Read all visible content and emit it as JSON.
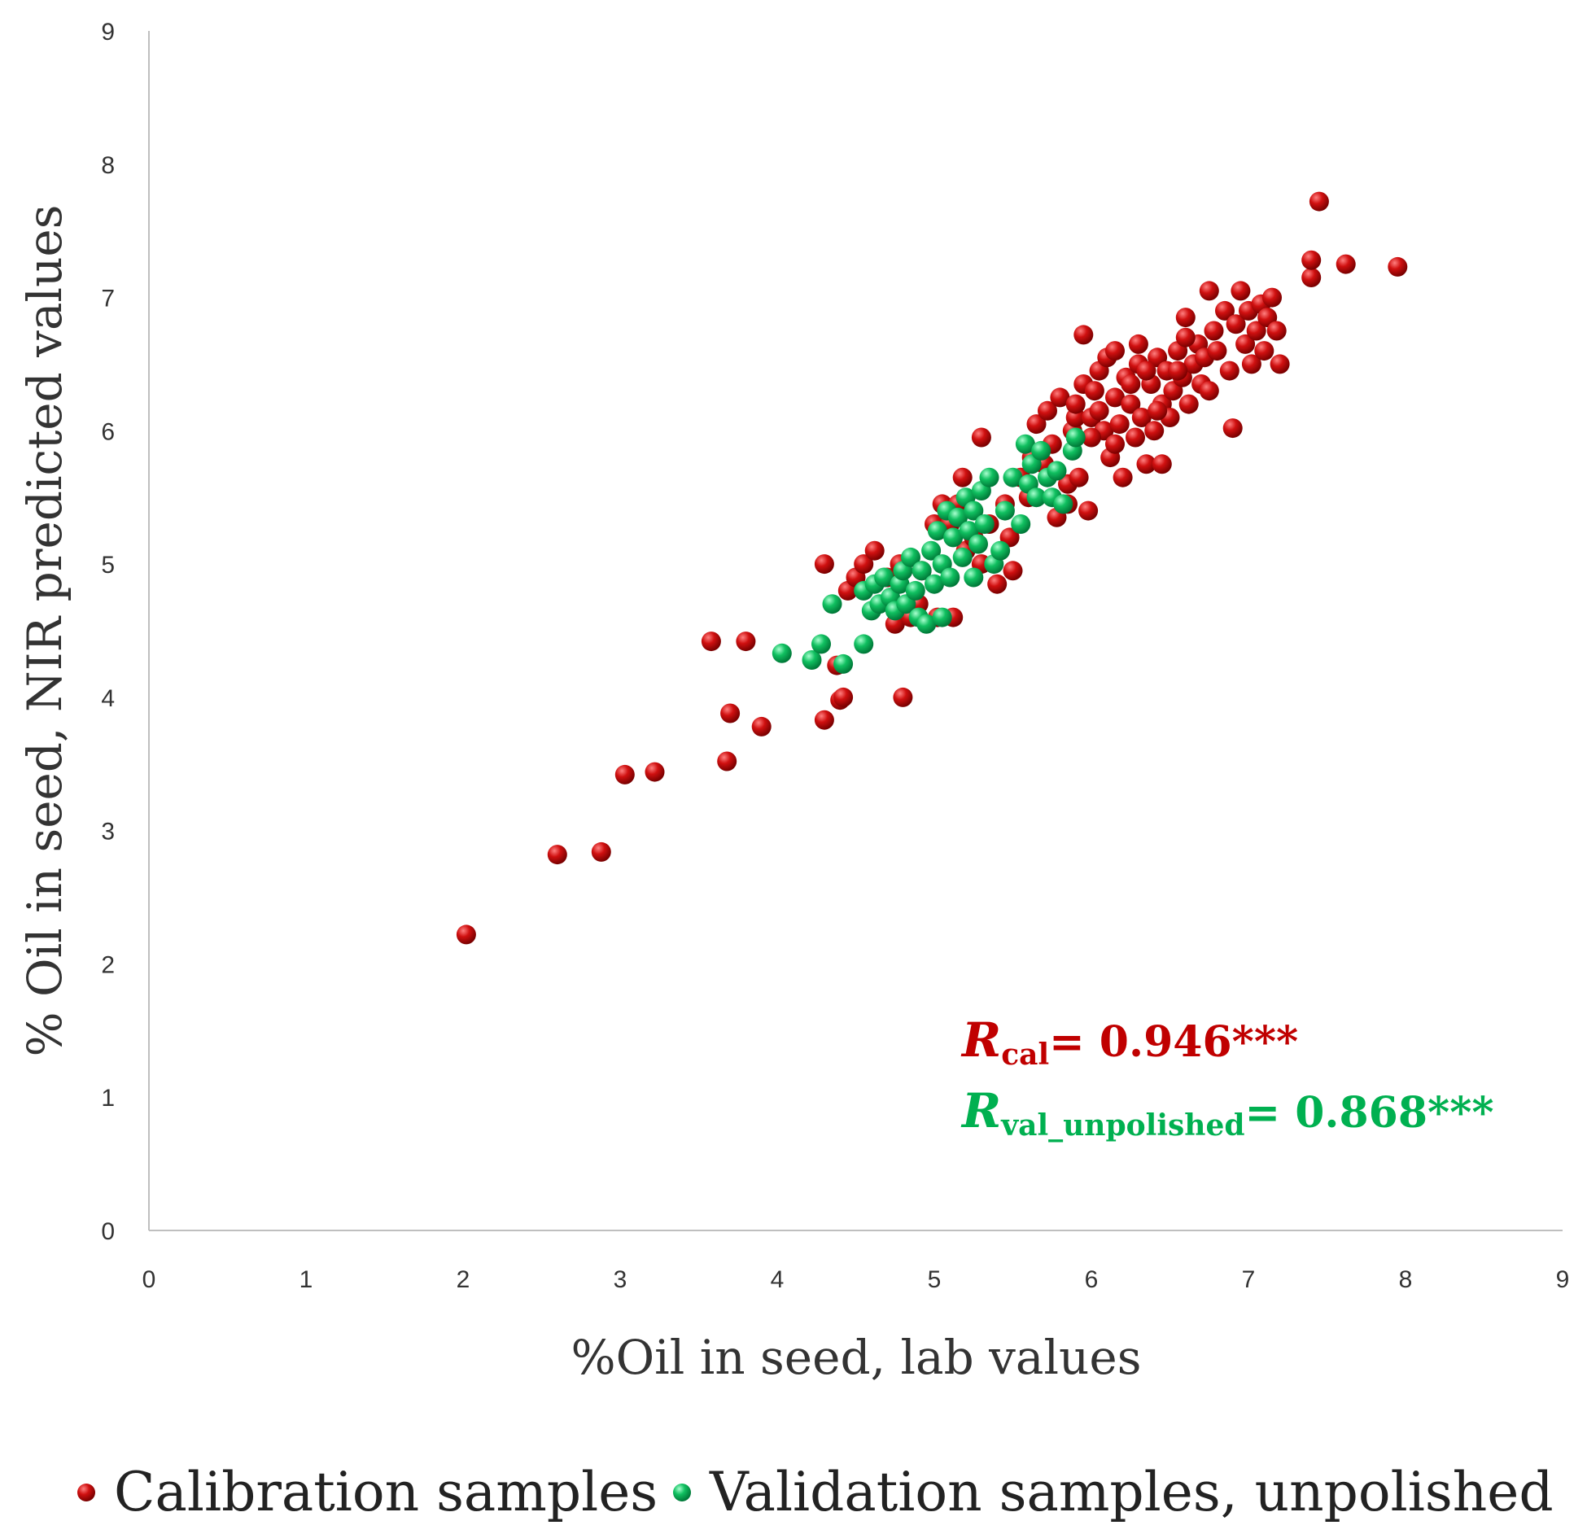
{
  "chart_data": {
    "type": "scatter",
    "title": "",
    "xlabel": "%Oil in seed, lab values",
    "ylabel": "% Oil in seed, NIR predicted values",
    "xlim": [
      0,
      9
    ],
    "ylim": [
      0,
      9
    ],
    "xticks": [
      "0",
      "1",
      "2",
      "3",
      "4",
      "5",
      "6",
      "7",
      "8",
      "9"
    ],
    "yticks": [
      "0",
      "1",
      "2",
      "3",
      "4",
      "5",
      "6",
      "7",
      "8",
      "9"
    ],
    "grid": false,
    "legend_position": "bottom",
    "annotations": {
      "r_cal": {
        "symbol": "R",
        "subscript": "cal",
        "value": "= 0.946***",
        "color": "#c00000"
      },
      "r_val": {
        "symbol": "R",
        "subscript": "val_unpolished",
        "value": "=  0.868***",
        "color": "#00b050"
      }
    },
    "series": [
      {
        "name": "Calibration samples",
        "color": "#c00000",
        "points": [
          [
            2.02,
            2.22
          ],
          [
            2.6,
            2.82
          ],
          [
            2.88,
            2.84
          ],
          [
            3.03,
            3.42
          ],
          [
            3.22,
            3.44
          ],
          [
            3.58,
            4.42
          ],
          [
            3.8,
            4.42
          ],
          [
            3.68,
            3.52
          ],
          [
            3.7,
            3.88
          ],
          [
            3.9,
            3.78
          ],
          [
            4.3,
            5.0
          ],
          [
            4.3,
            3.83
          ],
          [
            4.38,
            4.24
          ],
          [
            4.4,
            3.98
          ],
          [
            4.42,
            4.0
          ],
          [
            4.8,
            4.0
          ],
          [
            4.45,
            4.8
          ],
          [
            4.5,
            4.9
          ],
          [
            4.55,
            5.0
          ],
          [
            4.62,
            5.1
          ],
          [
            4.7,
            4.9
          ],
          [
            4.75,
            4.55
          ],
          [
            4.78,
            5.0
          ],
          [
            4.85,
            4.6
          ],
          [
            4.9,
            4.7
          ],
          [
            4.92,
            4.95
          ],
          [
            5.0,
            5.3
          ],
          [
            5.02,
            4.6
          ],
          [
            5.05,
            5.45
          ],
          [
            5.1,
            5.3
          ],
          [
            5.12,
            4.6
          ],
          [
            5.15,
            5.45
          ],
          [
            5.18,
            5.65
          ],
          [
            5.2,
            5.1
          ],
          [
            5.25,
            5.2
          ],
          [
            5.3,
            5.0
          ],
          [
            5.3,
            5.95
          ],
          [
            5.35,
            5.3
          ],
          [
            5.4,
            4.85
          ],
          [
            5.45,
            5.45
          ],
          [
            5.48,
            5.2
          ],
          [
            5.5,
            4.95
          ],
          [
            5.55,
            5.65
          ],
          [
            5.6,
            5.5
          ],
          [
            5.62,
            5.8
          ],
          [
            5.65,
            6.05
          ],
          [
            5.7,
            5.75
          ],
          [
            5.72,
            6.15
          ],
          [
            5.75,
            5.9
          ],
          [
            5.78,
            5.35
          ],
          [
            5.8,
            6.25
          ],
          [
            5.85,
            5.45
          ],
          [
            5.85,
            5.6
          ],
          [
            5.88,
            6.0
          ],
          [
            5.9,
            6.1
          ],
          [
            5.92,
            5.65
          ],
          [
            5.95,
            6.35
          ],
          [
            5.95,
            6.72
          ],
          [
            5.98,
            5.4
          ],
          [
            6.0,
            6.1
          ],
          [
            6.02,
            6.3
          ],
          [
            6.05,
            6.45
          ],
          [
            6.08,
            6.0
          ],
          [
            6.1,
            6.55
          ],
          [
            6.12,
            5.8
          ],
          [
            6.15,
            6.25
          ],
          [
            6.15,
            6.6
          ],
          [
            6.18,
            6.05
          ],
          [
            6.2,
            5.65
          ],
          [
            6.22,
            6.4
          ],
          [
            6.25,
            6.2
          ],
          [
            6.28,
            5.95
          ],
          [
            6.3,
            6.5
          ],
          [
            6.3,
            6.65
          ],
          [
            6.32,
            6.1
          ],
          [
            6.35,
            5.75
          ],
          [
            6.38,
            6.35
          ],
          [
            6.4,
            6.0
          ],
          [
            6.42,
            6.55
          ],
          [
            6.45,
            6.2
          ],
          [
            6.45,
            5.75
          ],
          [
            6.48,
            6.45
          ],
          [
            6.5,
            6.1
          ],
          [
            6.52,
            6.3
          ],
          [
            6.55,
            6.6
          ],
          [
            6.58,
            6.4
          ],
          [
            6.6,
            6.85
          ],
          [
            6.62,
            6.2
          ],
          [
            6.65,
            6.5
          ],
          [
            6.68,
            6.65
          ],
          [
            6.7,
            6.35
          ],
          [
            6.72,
            6.55
          ],
          [
            6.75,
            7.05
          ],
          [
            6.78,
            6.75
          ],
          [
            6.8,
            6.6
          ],
          [
            6.85,
            6.9
          ],
          [
            6.88,
            6.45
          ],
          [
            6.9,
            6.02
          ],
          [
            6.92,
            6.8
          ],
          [
            6.95,
            7.05
          ],
          [
            6.98,
            6.65
          ],
          [
            7.0,
            6.9
          ],
          [
            7.02,
            6.5
          ],
          [
            7.05,
            6.75
          ],
          [
            7.08,
            6.95
          ],
          [
            7.1,
            6.6
          ],
          [
            7.12,
            6.85
          ],
          [
            7.15,
            7.0
          ],
          [
            7.18,
            6.75
          ],
          [
            7.2,
            6.5
          ],
          [
            7.4,
            7.15
          ],
          [
            7.4,
            7.28
          ],
          [
            7.45,
            7.72
          ],
          [
            7.62,
            7.25
          ],
          [
            7.95,
            7.23
          ],
          [
            6.05,
            6.15
          ],
          [
            6.25,
            6.35
          ],
          [
            6.42,
            6.15
          ],
          [
            6.55,
            6.45
          ],
          [
            6.35,
            6.45
          ],
          [
            6.15,
            5.9
          ],
          [
            6.0,
            5.95
          ],
          [
            5.9,
            6.2
          ],
          [
            6.75,
            6.3
          ],
          [
            6.6,
            6.7
          ]
        ]
      },
      {
        "name": "Validation samples, unpolished",
        "color": "#00b050",
        "points": [
          [
            4.03,
            4.33
          ],
          [
            4.22,
            4.28
          ],
          [
            4.28,
            4.4
          ],
          [
            4.35,
            4.7
          ],
          [
            4.42,
            4.25
          ],
          [
            4.55,
            4.4
          ],
          [
            4.55,
            4.8
          ],
          [
            4.6,
            4.65
          ],
          [
            4.62,
            4.85
          ],
          [
            4.65,
            4.7
          ],
          [
            4.68,
            4.9
          ],
          [
            4.72,
            4.75
          ],
          [
            4.75,
            4.65
          ],
          [
            4.78,
            4.85
          ],
          [
            4.8,
            4.95
          ],
          [
            4.82,
            4.7
          ],
          [
            4.85,
            5.05
          ],
          [
            4.88,
            4.8
          ],
          [
            4.9,
            4.6
          ],
          [
            4.92,
            4.95
          ],
          [
            4.95,
            4.55
          ],
          [
            4.98,
            5.1
          ],
          [
            5.0,
            4.85
          ],
          [
            5.02,
            5.25
          ],
          [
            5.05,
            5.0
          ],
          [
            5.08,
            5.4
          ],
          [
            5.1,
            4.9
          ],
          [
            5.12,
            5.2
          ],
          [
            5.15,
            5.35
          ],
          [
            5.18,
            5.05
          ],
          [
            5.2,
            5.5
          ],
          [
            5.22,
            5.25
          ],
          [
            5.25,
            5.4
          ],
          [
            5.28,
            5.15
          ],
          [
            5.3,
            5.55
          ],
          [
            5.32,
            5.3
          ],
          [
            5.35,
            5.65
          ],
          [
            5.38,
            5.0
          ],
          [
            5.42,
            5.1
          ],
          [
            5.45,
            5.4
          ],
          [
            5.5,
            5.65
          ],
          [
            5.55,
            5.3
          ],
          [
            5.58,
            5.9
          ],
          [
            5.6,
            5.6
          ],
          [
            5.62,
            5.75
          ],
          [
            5.65,
            5.5
          ],
          [
            5.68,
            5.85
          ],
          [
            5.72,
            5.65
          ],
          [
            5.75,
            5.5
          ],
          [
            5.78,
            5.7
          ],
          [
            5.82,
            5.45
          ],
          [
            5.88,
            5.85
          ],
          [
            5.9,
            5.95
          ],
          [
            5.25,
            4.9
          ],
          [
            5.05,
            4.6
          ]
        ]
      }
    ]
  }
}
